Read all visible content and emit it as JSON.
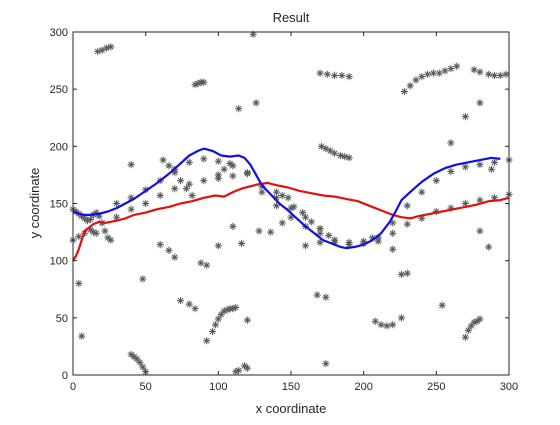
{
  "chart_data": {
    "type": "scatter",
    "title": "Result",
    "xlabel": "x coordinate",
    "ylabel": "y coordinate",
    "xlim": [
      0,
      300
    ],
    "ylim": [
      0,
      300
    ],
    "xticks": [
      0,
      50,
      100,
      150,
      200,
      250,
      300
    ],
    "yticks": [
      0,
      50,
      100,
      150,
      200,
      250,
      300
    ],
    "grid": false,
    "legend": "none",
    "colors": {
      "scatter": "#5a5a5a",
      "red_line": "#e01010",
      "blue_line": "#1010e0",
      "axes": "#262626"
    },
    "scatter_groups": [
      {
        "points": [
          [
            0,
            145
          ],
          [
            2,
            143
          ],
          [
            4,
            141
          ],
          [
            6,
            139
          ],
          [
            8,
            137
          ],
          [
            10,
            135
          ],
          [
            12,
            136
          ],
          [
            14,
            140
          ],
          [
            16,
            142
          ],
          [
            18,
            139
          ],
          [
            20,
            133
          ],
          [
            22,
            126
          ],
          [
            24,
            120
          ],
          [
            26,
            118
          ]
        ]
      },
      {
        "points": [
          [
            0,
            118
          ],
          [
            4,
            121
          ],
          [
            8,
            124
          ],
          [
            12,
            127
          ],
          [
            14,
            125
          ],
          [
            16,
            124
          ]
        ]
      },
      {
        "points": [
          [
            30,
            150
          ],
          [
            40,
            155
          ],
          [
            50,
            162
          ],
          [
            60,
            170
          ],
          [
            70,
            180
          ],
          [
            80,
            186
          ],
          [
            90,
            189
          ],
          [
            100,
            187
          ],
          [
            110,
            183
          ],
          [
            120,
            176
          ],
          [
            130,
            165
          ],
          [
            140,
            155
          ],
          [
            150,
            146
          ],
          [
            160,
            138
          ],
          [
            170,
            128
          ],
          [
            180,
            118
          ],
          [
            190,
            116
          ],
          [
            200,
            117
          ],
          [
            210,
            120
          ],
          [
            220,
            133
          ],
          [
            230,
            148
          ],
          [
            240,
            160
          ],
          [
            250,
            170
          ],
          [
            260,
            178
          ],
          [
            270,
            182
          ],
          [
            280,
            184
          ],
          [
            290,
            186
          ],
          [
            300,
            188
          ]
        ]
      },
      {
        "points": [
          [
            20,
            133
          ],
          [
            30,
            138
          ],
          [
            40,
            145
          ],
          [
            50,
            150
          ],
          [
            60,
            157
          ],
          [
            70,
            163
          ],
          [
            80,
            167
          ],
          [
            90,
            170
          ],
          [
            100,
            172
          ],
          [
            110,
            174
          ],
          [
            120,
            177
          ],
          [
            130,
            160
          ],
          [
            140,
            148
          ],
          [
            150,
            138
          ],
          [
            160,
            130
          ],
          [
            170,
            124
          ],
          [
            180,
            118
          ],
          [
            190,
            114
          ],
          [
            200,
            115
          ],
          [
            210,
            117
          ],
          [
            220,
            124
          ],
          [
            230,
            132
          ],
          [
            240,
            137
          ],
          [
            250,
            143
          ],
          [
            260,
            146
          ],
          [
            270,
            150
          ],
          [
            280,
            153
          ],
          [
            290,
            155
          ],
          [
            300,
            158
          ]
        ]
      },
      {
        "points": [
          [
            62,
            188
          ],
          [
            66,
            183
          ],
          [
            70,
            177
          ],
          [
            74,
            170
          ],
          [
            78,
            163
          ],
          [
            82,
            157
          ]
        ]
      },
      {
        "points": [
          [
            100,
            175
          ],
          [
            104,
            180
          ],
          [
            108,
            185
          ]
        ]
      },
      {
        "points": [
          [
            140,
            160
          ],
          [
            144,
            157
          ],
          [
            148,
            155
          ]
        ]
      },
      {
        "points": [
          [
            152,
            147
          ],
          [
            158,
            142
          ],
          [
            164,
            134
          ],
          [
            170,
            128
          ],
          [
            176,
            122
          ]
        ]
      },
      {
        "points": [
          [
            17,
            283
          ],
          [
            20,
            284
          ],
          [
            23,
            286
          ],
          [
            26,
            287
          ]
        ]
      },
      {
        "points": [
          [
            84,
            254
          ],
          [
            86,
            255
          ],
          [
            88,
            256
          ],
          [
            90,
            256
          ]
        ]
      },
      {
        "points": [
          [
            170,
            264
          ],
          [
            175,
            263
          ],
          [
            180,
            262
          ],
          [
            185,
            262
          ],
          [
            190,
            261
          ]
        ]
      },
      {
        "points": [
          [
            228,
            248
          ],
          [
            232,
            253
          ],
          [
            236,
            258
          ],
          [
            240,
            261
          ],
          [
            244,
            263
          ],
          [
            248,
            264
          ],
          [
            252,
            264
          ],
          [
            256,
            266
          ],
          [
            260,
            268
          ],
          [
            264,
            270
          ]
        ]
      },
      {
        "points": [
          [
            276,
            267
          ],
          [
            280,
            265
          ]
        ]
      },
      {
        "points": [
          [
            286,
            263
          ],
          [
            290,
            262
          ],
          [
            294,
            262
          ],
          [
            298,
            263
          ]
        ]
      },
      {
        "points": [
          [
            171,
            200
          ],
          [
            174,
            198
          ],
          [
            177,
            196
          ],
          [
            180,
            194
          ],
          [
            184,
            192
          ],
          [
            187,
            191
          ],
          [
            190,
            190
          ]
        ]
      },
      {
        "points": [
          [
            40,
            184
          ]
        ]
      },
      {
        "points": [
          [
            124,
            298
          ]
        ]
      },
      {
        "points": [
          [
            126,
            238
          ]
        ]
      },
      {
        "points": [
          [
            114,
            233
          ]
        ]
      },
      {
        "points": [
          [
            280,
            238
          ]
        ]
      },
      {
        "points": [
          [
            288,
            180
          ]
        ]
      },
      {
        "points": [
          [
            270,
            226
          ]
        ]
      },
      {
        "points": [
          [
            260,
            203
          ]
        ]
      },
      {
        "points": [
          [
            60,
            114
          ]
        ]
      },
      {
        "points": [
          [
            66,
            109
          ]
        ]
      },
      {
        "points": [
          [
            70,
            103
          ]
        ]
      },
      {
        "points": [
          [
            88,
            98
          ],
          [
            92,
            96
          ]
        ]
      },
      {
        "points": [
          [
            100,
            113
          ]
        ]
      },
      {
        "points": [
          [
            110,
            130
          ]
        ]
      },
      {
        "points": [
          [
            116,
            115
          ]
        ]
      },
      {
        "points": [
          [
            128,
            126
          ]
        ]
      },
      {
        "points": [
          [
            136,
            125
          ]
        ]
      },
      {
        "points": [
          [
            144,
            133
          ]
        ]
      },
      {
        "points": [
          [
            160,
            113
          ]
        ]
      },
      {
        "points": [
          [
            170,
            116
          ]
        ]
      },
      {
        "points": [
          [
            180,
            116
          ]
        ]
      },
      {
        "points": [
          [
            206,
            120
          ]
        ]
      },
      {
        "points": [
          [
            220,
            110
          ]
        ]
      },
      {
        "points": [
          [
            226,
            88
          ],
          [
            230,
            89
          ]
        ]
      },
      {
        "points": [
          [
            280,
            126
          ]
        ]
      },
      {
        "points": [
          [
            286,
            112
          ]
        ]
      },
      {
        "points": [
          [
            4,
            80
          ]
        ]
      },
      {
        "points": [
          [
            6,
            34
          ]
        ]
      },
      {
        "points": [
          [
            48,
            84
          ]
        ]
      },
      {
        "points": [
          [
            74,
            65
          ]
        ]
      },
      {
        "points": [
          [
            80,
            62
          ]
        ]
      },
      {
        "points": [
          [
            84,
            58
          ]
        ]
      },
      {
        "points": [
          [
            92,
            30
          ]
        ]
      },
      {
        "points": [
          [
            96,
            38
          ],
          [
            98,
            44
          ],
          [
            100,
            49
          ],
          [
            102,
            53
          ],
          [
            104,
            56
          ],
          [
            106,
            57
          ],
          [
            108,
            58
          ],
          [
            110,
            58
          ],
          [
            112,
            59
          ]
        ]
      },
      {
        "points": [
          [
            120,
            48
          ]
        ]
      },
      {
        "points": [
          [
            168,
            70
          ]
        ]
      },
      {
        "points": [
          [
            174,
            68
          ]
        ]
      },
      {
        "points": [
          [
            174,
            10
          ]
        ]
      },
      {
        "points": [
          [
            208,
            47
          ]
        ]
      },
      {
        "points": [
          [
            212,
            44
          ],
          [
            216,
            43
          ],
          [
            220,
            44
          ]
        ]
      },
      {
        "points": [
          [
            226,
            50
          ]
        ]
      },
      {
        "points": [
          [
            254,
            61
          ]
        ]
      },
      {
        "points": [
          [
            270,
            33
          ],
          [
            272,
            39
          ],
          [
            274,
            43
          ],
          [
            276,
            46
          ],
          [
            278,
            47
          ],
          [
            280,
            49
          ]
        ]
      },
      {
        "points": [
          [
            40,
            18
          ],
          [
            42,
            16
          ],
          [
            44,
            14
          ],
          [
            46,
            11
          ],
          [
            48,
            7
          ],
          [
            50,
            3
          ]
        ]
      },
      {
        "points": [
          [
            112,
            3
          ],
          [
            114,
            4
          ]
        ]
      },
      {
        "points": [
          [
            118,
            8
          ],
          [
            120,
            6
          ]
        ]
      }
    ],
    "series": [
      {
        "color": "red",
        "x": [
          0,
          2,
          4,
          6,
          8,
          10,
          14,
          18,
          22,
          26,
          30,
          36,
          42,
          50,
          58,
          66,
          74,
          82,
          90,
          98,
          104,
          110,
          116,
          122,
          128,
          134,
          140,
          148,
          156,
          164,
          172,
          180,
          188,
          196,
          204,
          212,
          220,
          226,
          232,
          238,
          246,
          254,
          262,
          270,
          278,
          286,
          294,
          300
        ],
        "y": [
          100,
          104,
          110,
          118,
          126,
          128,
          132,
          134,
          133,
          134,
          135,
          137,
          140,
          142,
          145,
          147,
          150,
          152,
          155,
          157,
          156,
          160,
          163,
          165,
          167,
          168,
          166,
          164,
          161,
          159,
          157,
          156,
          154,
          152,
          148,
          144,
          140,
          138,
          137,
          139,
          141,
          143,
          145,
          147,
          149,
          152,
          153,
          155
        ]
      },
      {
        "color": "blue",
        "x": [
          0,
          4,
          8,
          12,
          18,
          24,
          30,
          36,
          42,
          50,
          58,
          66,
          74,
          80,
          86,
          90,
          96,
          102,
          108,
          114,
          118,
          122,
          126,
          130,
          136,
          142,
          148,
          154,
          160,
          166,
          172,
          178,
          184,
          188,
          194,
          200,
          206,
          212,
          218,
          222,
          226,
          232,
          240,
          248,
          256,
          264,
          272,
          280,
          288,
          294
        ],
        "y": [
          143,
          141,
          140,
          140,
          141,
          143,
          146,
          150,
          154,
          161,
          168,
          176,
          185,
          192,
          196,
          198,
          196,
          192,
          191,
          192,
          190,
          184,
          175,
          166,
          158,
          150,
          144,
          137,
          130,
          124,
          118,
          115,
          112,
          111,
          112,
          114,
          118,
          124,
          134,
          143,
          153,
          160,
          169,
          176,
          181,
          184,
          186,
          188,
          190,
          189
        ]
      }
    ]
  }
}
